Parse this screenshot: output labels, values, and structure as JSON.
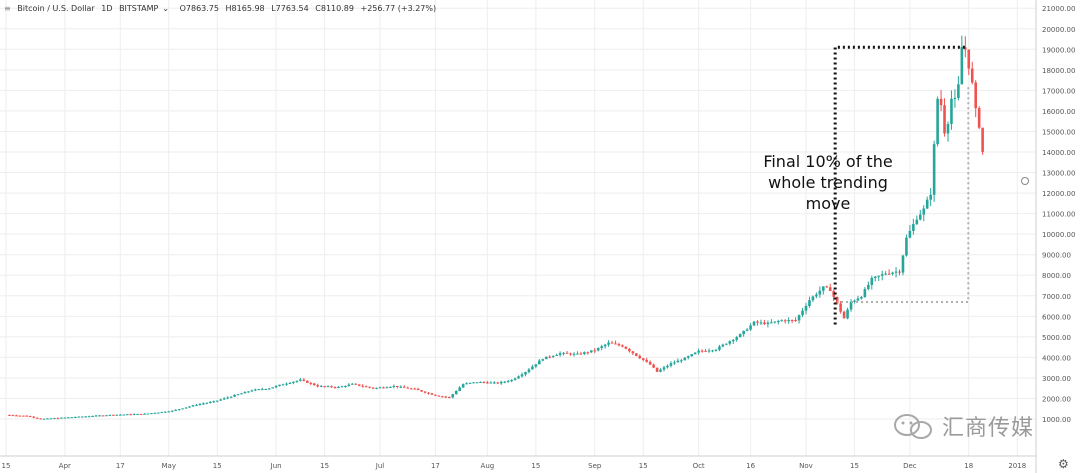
{
  "header": {
    "symbol": "Bitcoin / U.S. Dollar",
    "interval": "1D",
    "exchange": "BITSTAMP",
    "open": "O7863.75",
    "high": "H8165.98",
    "low": "L7763.54",
    "close": "C8110.89",
    "change": "+256.77 (+3.27%)"
  },
  "annotation": [
    "Final 10% of the",
    "whole trending",
    "move"
  ],
  "watermark": "汇商传媒",
  "colors": {
    "up": "#26a69a",
    "down": "#ef5350",
    "dotted_black": "#111111",
    "dotted_grey": "#b0b0b0",
    "grid": "#eeeeee"
  },
  "icons": {
    "settings": "gear-icon",
    "wechat": "wechat-icon"
  },
  "chart_data": {
    "type": "candlestick",
    "title": "",
    "xlabel": "",
    "ylabel": "",
    "y_ticks": [
      "1000.00",
      "2000.00",
      "3000.00",
      "4000.00",
      "5000.00",
      "6000.00",
      "7000.00",
      "8000.00",
      "9000.00",
      "10000.00",
      "11000.00",
      "12000.00",
      "13000.00",
      "14000.00",
      "15000.00",
      "16000.00",
      "17000.00",
      "18000.00",
      "19000.00",
      "20000.00",
      "21000.00"
    ],
    "ylim": [
      -800,
      21400
    ],
    "grid": true,
    "x_ticks": [
      {
        "label": "15",
        "day": 0
      },
      {
        "label": "Apr",
        "day": 17
      },
      {
        "label": "17",
        "day": 33
      },
      {
        "label": "May",
        "day": 47
      },
      {
        "label": "15",
        "day": 61
      },
      {
        "label": "Jun",
        "day": 78
      },
      {
        "label": "15",
        "day": 92
      },
      {
        "label": "Jul",
        "day": 108
      },
      {
        "label": "17",
        "day": 124
      },
      {
        "label": "Aug",
        "day": 139
      },
      {
        "label": "15",
        "day": 153
      },
      {
        "label": "Sep",
        "day": 170
      },
      {
        "label": "15",
        "day": 184
      },
      {
        "label": "Oct",
        "day": 200
      },
      {
        "label": "16",
        "day": 215
      },
      {
        "label": "Nov",
        "day": 231
      },
      {
        "label": "15",
        "day": 245
      },
      {
        "label": "Dec",
        "day": 261
      },
      {
        "label": "18",
        "day": 278
      },
      {
        "label": "2018",
        "day": 292
      }
    ],
    "x_days": 308,
    "price_path": [
      [
        0,
        1200
      ],
      [
        6,
        1150
      ],
      [
        10,
        1000
      ],
      [
        18,
        1080
      ],
      [
        30,
        1200
      ],
      [
        40,
        1250
      ],
      [
        48,
        1400
      ],
      [
        55,
        1700
      ],
      [
        60,
        1850
      ],
      [
        66,
        2150
      ],
      [
        71,
        2400
      ],
      [
        76,
        2500
      ],
      [
        80,
        2700
      ],
      [
        85,
        2900
      ],
      [
        90,
        2600
      ],
      [
        96,
        2550
      ],
      [
        100,
        2700
      ],
      [
        106,
        2500
      ],
      [
        112,
        2600
      ],
      [
        118,
        2450
      ],
      [
        124,
        2150
      ],
      [
        128,
        2050
      ],
      [
        132,
        2700
      ],
      [
        136,
        2800
      ],
      [
        142,
        2750
      ],
      [
        146,
        2900
      ],
      [
        150,
        3300
      ],
      [
        155,
        3950
      ],
      [
        160,
        4200
      ],
      [
        165,
        4150
      ],
      [
        170,
        4350
      ],
      [
        174,
        4700
      ],
      [
        178,
        4550
      ],
      [
        182,
        4100
      ],
      [
        186,
        3650
      ],
      [
        188,
        3300
      ],
      [
        192,
        3700
      ],
      [
        196,
        3950
      ],
      [
        200,
        4300
      ],
      [
        205,
        4400
      ],
      [
        208,
        4700
      ],
      [
        212,
        5100
      ],
      [
        216,
        5700
      ],
      [
        220,
        5650
      ],
      [
        224,
        5800
      ],
      [
        228,
        5800
      ],
      [
        232,
        6800
      ],
      [
        236,
        7400
      ],
      [
        238,
        7300
      ],
      [
        240,
        6600
      ],
      [
        242,
        5900
      ],
      [
        244,
        6700
      ],
      [
        247,
        7000
      ],
      [
        250,
        7800
      ],
      [
        254,
        8100
      ],
      [
        258,
        8200
      ],
      [
        260,
        9800
      ],
      [
        263,
        10800
      ],
      [
        265,
        11200
      ],
      [
        267,
        12000
      ],
      [
        269,
        16600
      ],
      [
        270,
        16300
      ],
      [
        271,
        15000
      ],
      [
        272,
        15500
      ],
      [
        273,
        16600
      ],
      [
        274,
        16500
      ],
      [
        275,
        17200
      ],
      [
        276,
        19100
      ],
      [
        277,
        19000
      ],
      [
        278,
        18200
      ],
      [
        279,
        17300
      ],
      [
        280,
        16000
      ],
      [
        281,
        15300
      ],
      [
        282,
        14000
      ]
    ],
    "bounding_box": {
      "first_day": 240,
      "last_day": 277,
      "top": 19100,
      "bottom": 6700
    },
    "rally_start": {
      "day": 242,
      "low": 5600
    }
  }
}
